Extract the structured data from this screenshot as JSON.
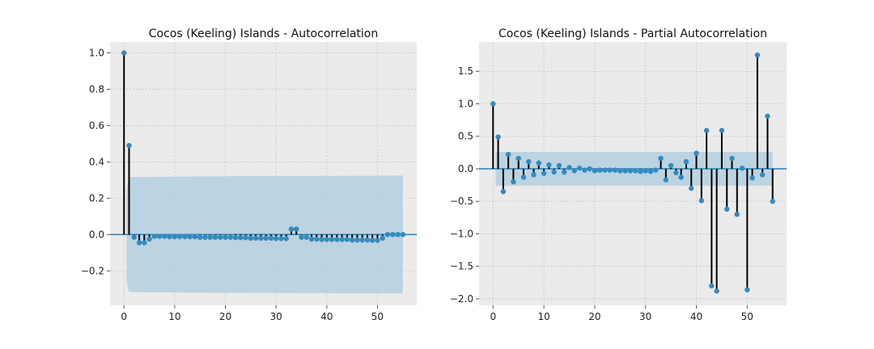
{
  "colors": {
    "plot_background": "#ebebeb",
    "grid": "#c8c8c8",
    "stem": "#000000",
    "marker": "#348abd",
    "zero_line": "#348abd",
    "confidence_band": "#b4cfe0"
  },
  "chart_data": [
    {
      "type": "stem",
      "title": "Cocos (Keeling) Islands - Autocorrelation",
      "xlabel": "",
      "ylabel": "",
      "xlim": [
        -2.75,
        57.75
      ],
      "ylim": [
        -0.39,
        1.06
      ],
      "grid": true,
      "xticks": [
        0,
        10,
        20,
        30,
        40,
        50
      ],
      "xtick_labels": [
        "0",
        "10",
        "20",
        "30",
        "40",
        "50"
      ],
      "yticks": [
        -0.2,
        0.0,
        0.2,
        0.4,
        0.6,
        0.8,
        1.0
      ],
      "ytick_labels": [
        "−0.2",
        "0.0",
        "0.2",
        "0.4",
        "0.6",
        "0.8",
        "1.0"
      ],
      "x": [
        0,
        1,
        2,
        3,
        4,
        5,
        6,
        7,
        8,
        9,
        10,
        11,
        12,
        13,
        14,
        15,
        16,
        17,
        18,
        19,
        20,
        21,
        22,
        23,
        24,
        25,
        26,
        27,
        28,
        29,
        30,
        31,
        32,
        33,
        34,
        35,
        36,
        37,
        38,
        39,
        40,
        41,
        42,
        43,
        44,
        45,
        46,
        47,
        48,
        49,
        50,
        51,
        52,
        53,
        54,
        55
      ],
      "values": [
        1.0,
        0.49,
        -0.015,
        -0.045,
        -0.045,
        -0.025,
        -0.01,
        -0.01,
        -0.01,
        -0.012,
        -0.012,
        -0.012,
        -0.012,
        -0.012,
        -0.012,
        -0.015,
        -0.015,
        -0.015,
        -0.015,
        -0.015,
        -0.015,
        -0.015,
        -0.017,
        -0.017,
        -0.017,
        -0.02,
        -0.02,
        -0.02,
        -0.02,
        -0.02,
        -0.022,
        -0.022,
        -0.022,
        0.03,
        0.03,
        -0.015,
        -0.015,
        -0.025,
        -0.025,
        -0.027,
        -0.027,
        -0.027,
        -0.027,
        -0.027,
        -0.027,
        -0.03,
        -0.03,
        -0.03,
        -0.03,
        -0.032,
        -0.032,
        -0.02,
        0.0,
        0.0,
        0.0,
        0.0
      ],
      "confidence_band": {
        "x": [
          0.5,
          0.75,
          1,
          2,
          5,
          10,
          20,
          30,
          40,
          50,
          55
        ],
        "upper": [
          0.25,
          0.29,
          0.315,
          0.317,
          0.318,
          0.319,
          0.321,
          0.322,
          0.323,
          0.324,
          0.325
        ],
        "lower": [
          -0.25,
          -0.29,
          -0.315,
          -0.317,
          -0.318,
          -0.319,
          -0.321,
          -0.322,
          -0.323,
          -0.324,
          -0.325
        ]
      }
    },
    {
      "type": "stem",
      "title": "Cocos (Keeling) Islands - Partial Autocorrelation",
      "xlabel": "",
      "ylabel": "",
      "xlim": [
        -2.75,
        57.75
      ],
      "ylim": [
        -2.1,
        1.95
      ],
      "grid": true,
      "xticks": [
        0,
        10,
        20,
        30,
        40,
        50
      ],
      "xtick_labels": [
        "0",
        "10",
        "20",
        "30",
        "40",
        "50"
      ],
      "yticks": [
        -2.0,
        -1.5,
        -1.0,
        -0.5,
        0.0,
        0.5,
        1.0,
        1.5
      ],
      "ytick_labels": [
        "−2.0",
        "−1.5",
        "−1.0",
        "−0.5",
        "0.0",
        "0.5",
        "1.0",
        "1.5"
      ],
      "x": [
        0,
        1,
        2,
        3,
        4,
        5,
        6,
        7,
        8,
        9,
        10,
        11,
        12,
        13,
        14,
        15,
        16,
        17,
        18,
        19,
        20,
        21,
        22,
        23,
        24,
        25,
        26,
        27,
        28,
        29,
        30,
        31,
        32,
        33,
        34,
        35,
        36,
        37,
        38,
        39,
        40,
        41,
        42,
        43,
        44,
        45,
        46,
        47,
        48,
        49,
        50,
        51,
        52,
        53,
        54,
        55
      ],
      "values": [
        1.0,
        0.49,
        -0.35,
        0.22,
        -0.2,
        0.16,
        -0.13,
        0.11,
        -0.09,
        0.09,
        -0.07,
        0.06,
        -0.05,
        0.05,
        -0.05,
        0.02,
        -0.03,
        0.01,
        -0.02,
        0.0,
        -0.03,
        -0.02,
        -0.02,
        -0.02,
        -0.02,
        -0.03,
        -0.03,
        -0.03,
        -0.03,
        -0.04,
        -0.03,
        -0.04,
        -0.02,
        0.16,
        -0.17,
        0.05,
        -0.06,
        -0.13,
        0.11,
        -0.3,
        0.24,
        -0.49,
        0.59,
        -1.8,
        -1.88,
        0.59,
        -0.62,
        0.16,
        -0.7,
        0.01,
        -1.86,
        -0.14,
        1.75,
        -0.09,
        0.81,
        -0.5
      ],
      "confidence_band": {
        "x": [
          0.5,
          55
        ],
        "upper": [
          0.26,
          0.26
        ],
        "lower": [
          -0.26,
          -0.26
        ]
      }
    }
  ]
}
